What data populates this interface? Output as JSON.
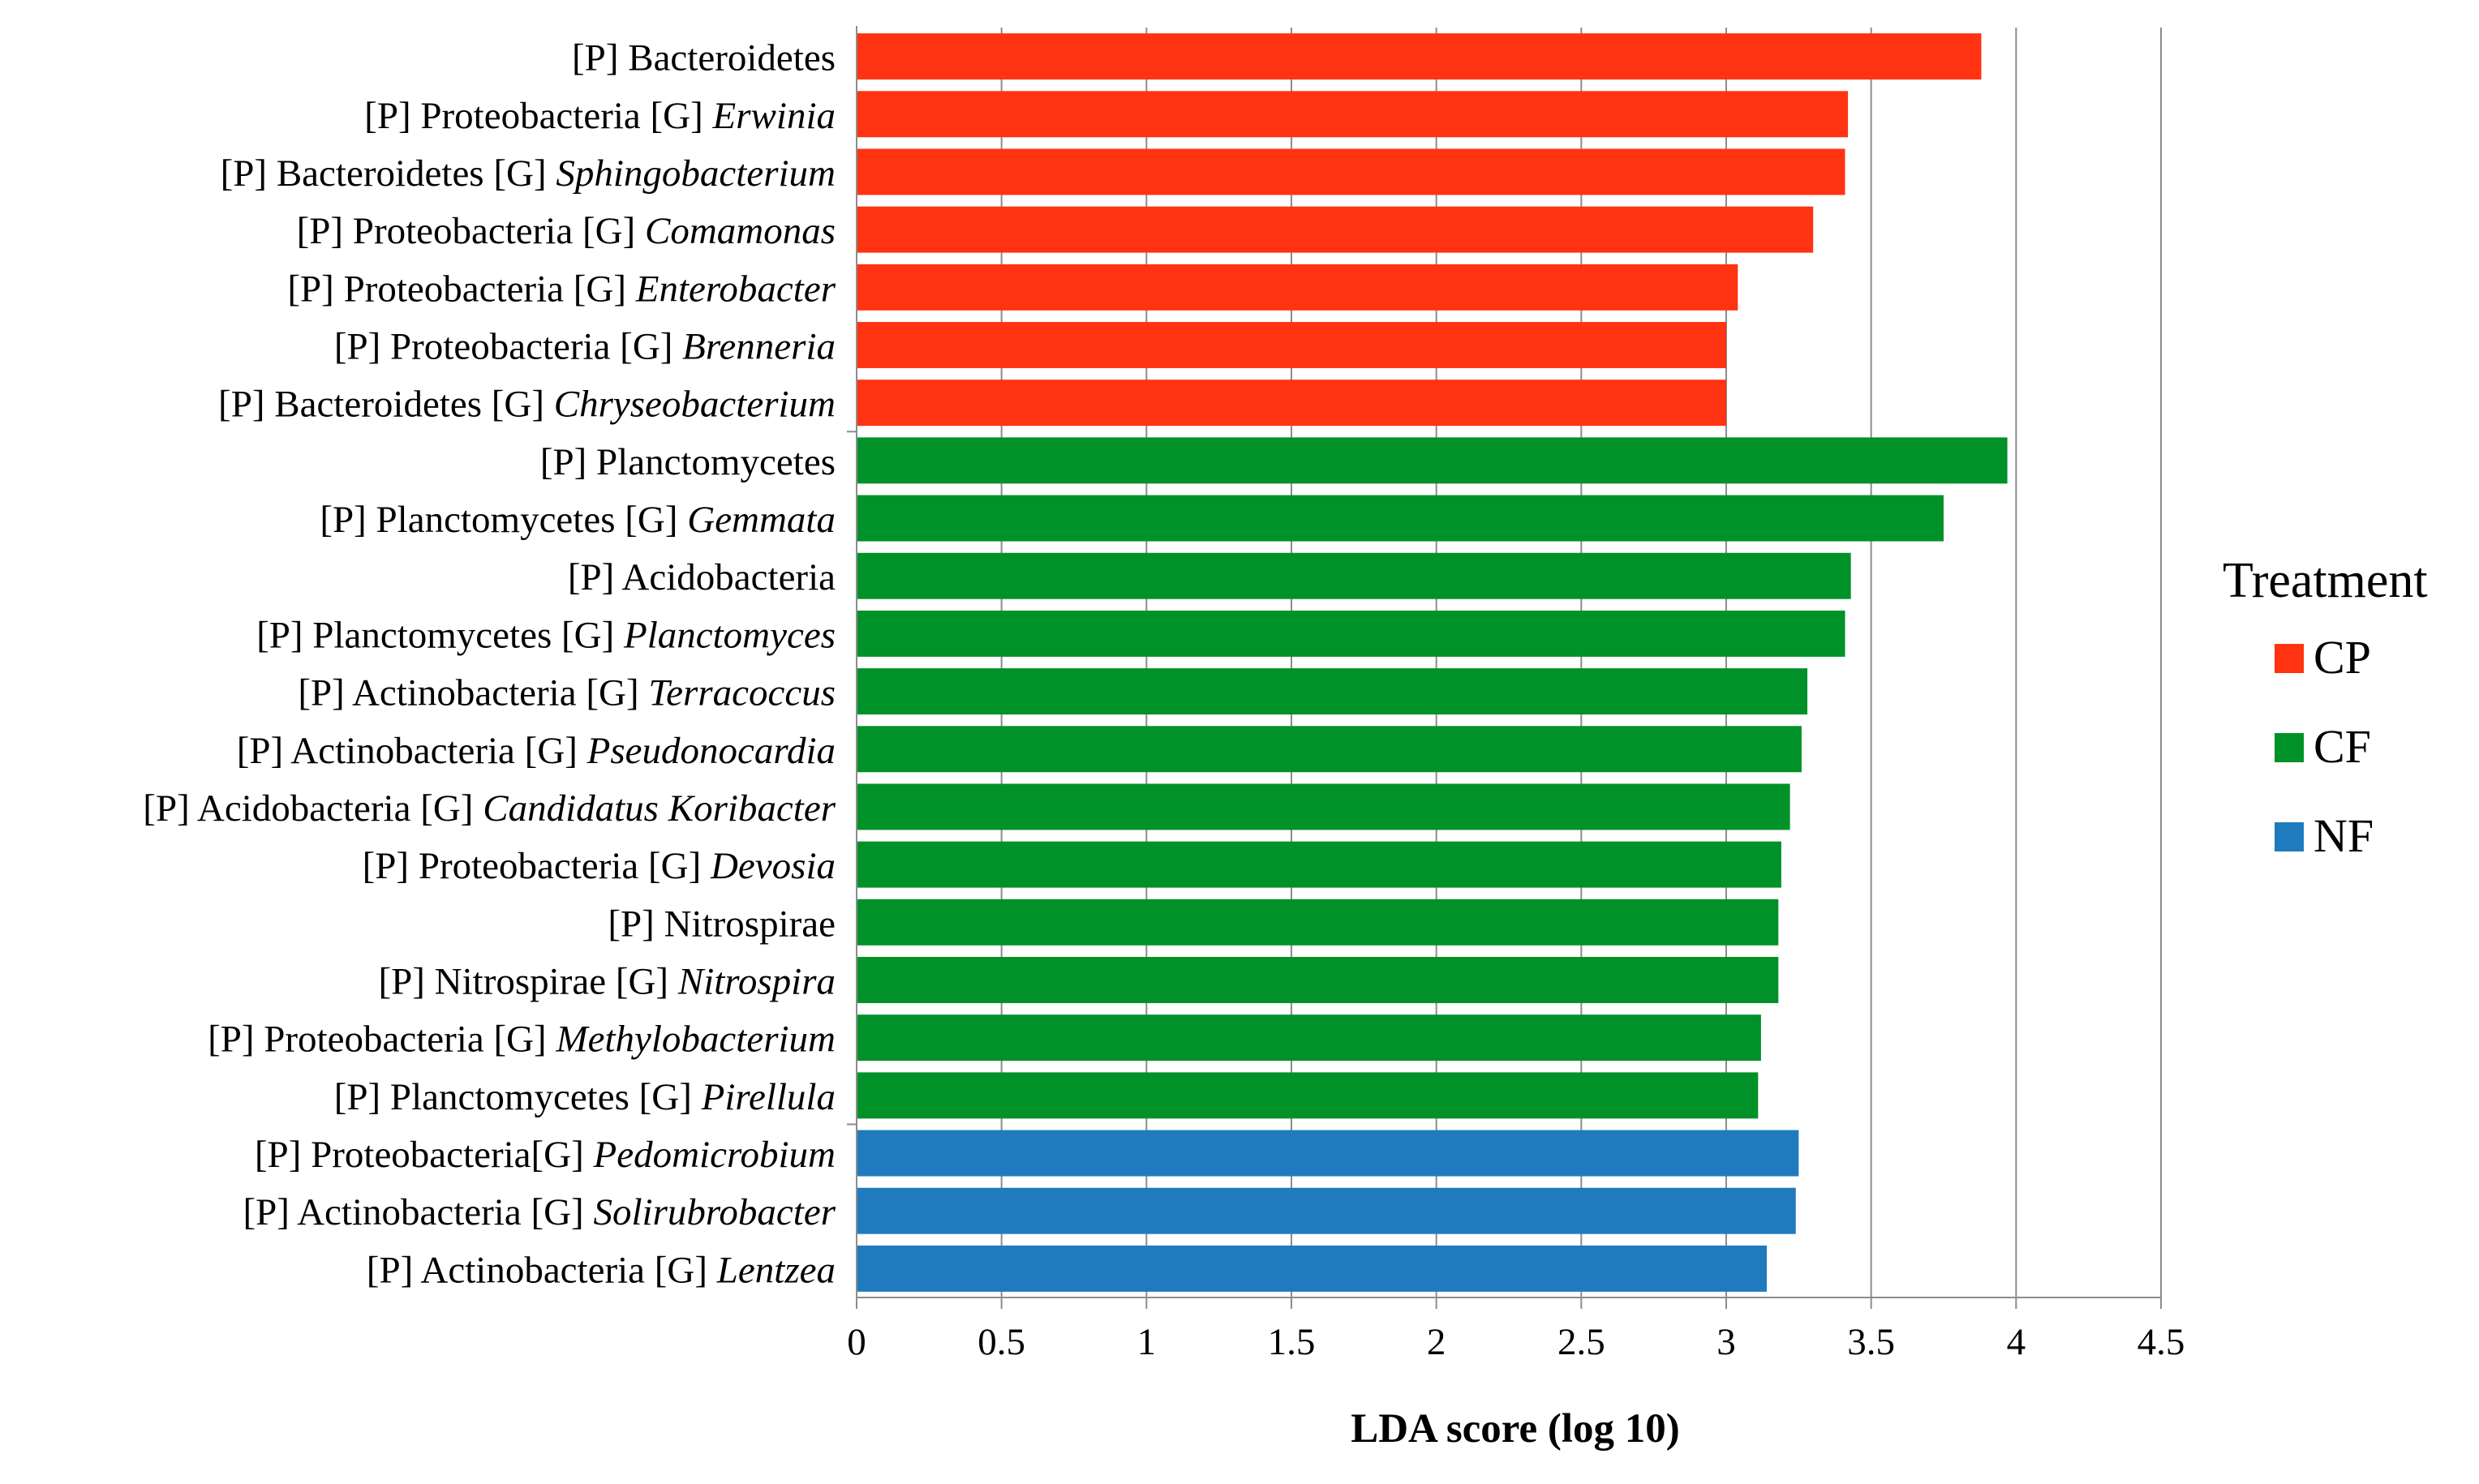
{
  "chart_data": {
    "type": "bar",
    "orientation": "horizontal",
    "xlabel": "LDA score (log 10)",
    "ylabel": "",
    "xlim": [
      0,
      4.5
    ],
    "xticks": [
      "0",
      "0.5",
      "1",
      "1.5",
      "2",
      "2.5",
      "3",
      "3.5",
      "4",
      "4.5"
    ],
    "grid": "vertical",
    "legend": {
      "title": "Treatment",
      "position": "right",
      "entries": [
        {
          "name": "CP",
          "color": "#FF3311"
        },
        {
          "name": "CF",
          "color": "#009129"
        },
        {
          "name": "NF",
          "color": "#1F7BBE"
        }
      ]
    },
    "bars": [
      {
        "phylum": "[P] Bacteroidetes",
        "genus": "",
        "value": 3.88,
        "group": "CP"
      },
      {
        "phylum": "[P] Proteobacteria [G] ",
        "genus": "Erwinia",
        "value": 3.42,
        "group": "CP"
      },
      {
        "phylum": "[P] Bacteroidetes [G] ",
        "genus": "Sphingobacterium",
        "value": 3.41,
        "group": "CP"
      },
      {
        "phylum": "[P] Proteobacteria [G] ",
        "genus": "Comamonas",
        "value": 3.3,
        "group": "CP"
      },
      {
        "phylum": "[P] Proteobacteria [G] ",
        "genus": "Enterobacter",
        "value": 3.04,
        "group": "CP"
      },
      {
        "phylum": "[P] Proteobacteria [G] ",
        "genus": "Brenneria",
        "value": 3.0,
        "group": "CP"
      },
      {
        "phylum": "[P] Bacteroidetes [G] ",
        "genus": "Chryseobacterium",
        "value": 3.0,
        "group": "CP"
      },
      {
        "phylum": "[P] Planctomycetes",
        "genus": "",
        "value": 3.97,
        "group": "CF"
      },
      {
        "phylum": "[P] Planctomycetes [G] ",
        "genus": "Gemmata",
        "value": 3.75,
        "group": "CF"
      },
      {
        "phylum": "[P] Acidobacteria",
        "genus": "",
        "value": 3.43,
        "group": "CF"
      },
      {
        "phylum": "[P] Planctomycetes [G] ",
        "genus": "Planctomyces",
        "value": 3.41,
        "group": "CF"
      },
      {
        "phylum": "[P] Actinobacteria [G] ",
        "genus": "Terracoccus",
        "value": 3.28,
        "group": "CF"
      },
      {
        "phylum": "[P] Actinobacteria [G] ",
        "genus": "Pseudonocardia",
        "value": 3.26,
        "group": "CF"
      },
      {
        "phylum": "[P] Acidobacteria [G] ",
        "genus": "Candidatus Koribacter",
        "value": 3.22,
        "group": "CF"
      },
      {
        "phylum": "[P] Proteobacteria [G] ",
        "genus": "Devosia",
        "value": 3.19,
        "group": "CF"
      },
      {
        "phylum": "[P] Nitrospirae",
        "genus": "",
        "value": 3.18,
        "group": "CF"
      },
      {
        "phylum": "[P] Nitrospirae [G] ",
        "genus": "Nitrospira",
        "value": 3.18,
        "group": "CF"
      },
      {
        "phylum": "[P] Proteobacteria [G] ",
        "genus": "Methylobacterium",
        "value": 3.12,
        "group": "CF"
      },
      {
        "phylum": "[P] Planctomycetes [G] ",
        "genus": "Pirellula",
        "value": 3.11,
        "group": "CF"
      },
      {
        "phylum": "[P] Proteobacteria[G] ",
        "genus": "Pedomicrobium",
        "value": 3.25,
        "group": "NF"
      },
      {
        "phylum": "[P] Actinobacteria [G] ",
        "genus": "Solirubrobacter",
        "value": 3.24,
        "group": "NF"
      },
      {
        "phylum": "[P] Actinobacteria [G] ",
        "genus": "Lentzea",
        "value": 3.14,
        "group": "NF"
      }
    ]
  }
}
